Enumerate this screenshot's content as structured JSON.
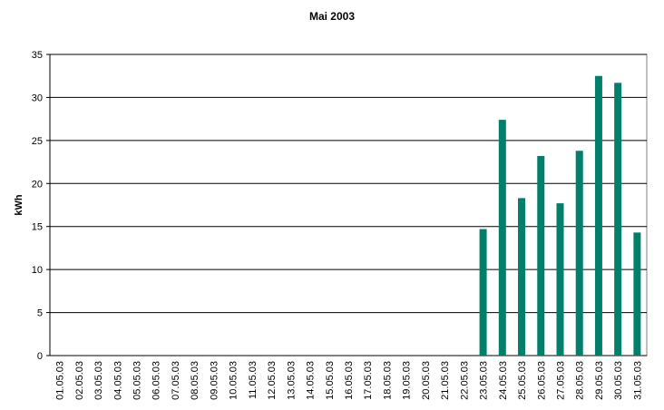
{
  "chart_data": {
    "type": "bar",
    "title": "Mai 2003",
    "y_label": "kWh",
    "categories": [
      "01.05.03",
      "02.05.03",
      "03.05.03",
      "04.05.03",
      "05.05.03",
      "06.05.03",
      "07.05.03",
      "08.05.03",
      "09.05.03",
      "10.05.03",
      "11.05.03",
      "12.05.03",
      "13.05.03",
      "14.05.03",
      "15.05.03",
      "16.05.03",
      "17.05.03",
      "18.05.03",
      "19.05.03",
      "20.05.03",
      "21.05.03",
      "22.05.03",
      "23.05.03",
      "24.05.03",
      "25.05.03",
      "26.05.03",
      "27.05.03",
      "28.05.03",
      "29.05.03",
      "30.05.03",
      "31.05.03"
    ],
    "values": [
      0,
      0,
      0,
      0,
      0,
      0,
      0,
      0,
      0,
      0,
      0,
      0,
      0,
      0,
      0,
      0,
      0,
      0,
      0,
      0,
      0,
      0,
      14.7,
      27.4,
      18.3,
      23.2,
      17.7,
      23.8,
      32.5,
      31.7,
      14.3
    ],
    "color": "#00806a",
    "ylim": [
      0,
      35
    ],
    "yticks": [
      0,
      5,
      10,
      15,
      20,
      25,
      30,
      35
    ],
    "grid": true
  }
}
